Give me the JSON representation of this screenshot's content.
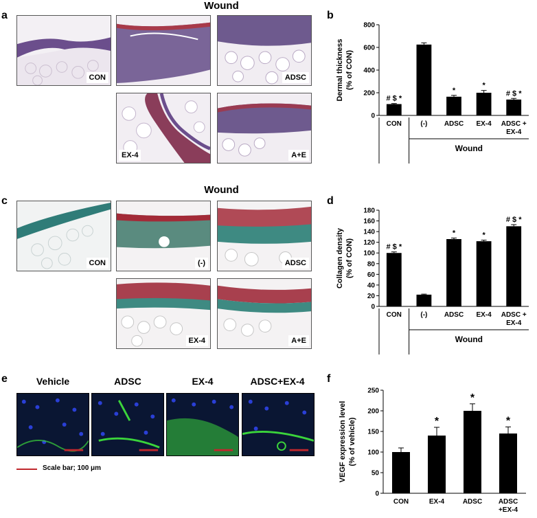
{
  "panels": {
    "a": {
      "label": "a",
      "title": "Wound",
      "tiles": [
        "CON",
        "(-)",
        "ADSC",
        "EX-4",
        "A+E"
      ]
    },
    "c": {
      "label": "c",
      "title": "Wound",
      "tiles": [
        "CON",
        "(-)",
        "ADSC",
        "EX-4",
        "A+E"
      ]
    },
    "e": {
      "label": "e",
      "headers": [
        "Vehicle",
        "ADSC",
        "EX-4",
        "ADSC+EX-4"
      ],
      "scale_bar": "Scale bar; 100 μm"
    }
  },
  "chart_data": [
    {
      "panel": "b",
      "type": "bar",
      "categories": [
        "CON",
        "(-)",
        "ADSC",
        "EX-4",
        "ADSC +\nEX-4"
      ],
      "values": [
        100,
        625,
        165,
        200,
        140
      ],
      "errors": [
        5,
        15,
        12,
        20,
        10
      ],
      "annotations": [
        "# $ *",
        "",
        "*",
        "*",
        "# $ *"
      ],
      "ylabel": "Dermal thickness\n(% of CON)",
      "ylim": [
        0,
        800
      ],
      "yticks": [
        0,
        200,
        400,
        600,
        800
      ],
      "group_label": "Wound"
    },
    {
      "panel": "d",
      "type": "bar",
      "categories": [
        "CON",
        "(-)",
        "ADSC",
        "EX-4",
        "ADSC +\nEX-4"
      ],
      "values": [
        100,
        22,
        126,
        122,
        150
      ],
      "errors": [
        2,
        1,
        2,
        2,
        3
      ],
      "annotations": [
        "# $ *",
        "",
        "*",
        "*",
        "# $ *"
      ],
      "ylabel": "Collagen density\n(% of CON)",
      "ylim": [
        0,
        180
      ],
      "yticks": [
        0,
        20,
        40,
        60,
        80,
        100,
        120,
        140,
        160,
        180
      ],
      "group_label": "Wound"
    },
    {
      "panel": "f",
      "type": "bar",
      "categories": [
        "CON",
        "EX-4",
        "ADSC",
        "ADSC\n+EX-4"
      ],
      "values": [
        100,
        140,
        200,
        145
      ],
      "errors": [
        10,
        20,
        17,
        16
      ],
      "annotations": [
        "",
        "*",
        "*",
        "*"
      ],
      "ylabel": "VEGF expression level\n(% of vehicle)",
      "ylim": [
        0,
        250
      ],
      "yticks": [
        0,
        50,
        100,
        150,
        200,
        250
      ],
      "group_label": ""
    }
  ],
  "chart_labels": [
    "b",
    "d",
    "f"
  ],
  "colors": {
    "bar": "#000000",
    "scale_bar": "#c0272d",
    "he_stain": "#6b4e8c",
    "masson": "#2f7c78",
    "gfp": "#3bd43b",
    "dapi": "#2a3fd6"
  }
}
